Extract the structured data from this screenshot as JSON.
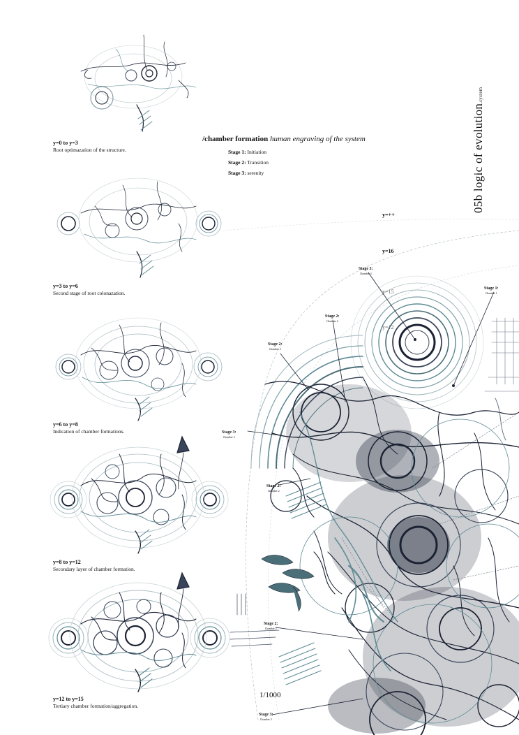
{
  "heading": {
    "bold": "/chamber formation",
    "italic": "human engraving of the system"
  },
  "stages": [
    {
      "label": "Stage 1:",
      "text": "Initiation"
    },
    {
      "label": "Stage 2:",
      "text": "Transition"
    },
    {
      "label": "Stage 3:",
      "text": "serenity"
    }
  ],
  "vertical_title": {
    "main": "05b  logic of evolution",
    "sub": ".system"
  },
  "steps": [
    {
      "label": "y=0 to y=3",
      "text": "Root optimazation of the structure."
    },
    {
      "label": "y=3 to y=6",
      "text": "Second stage of root colonazation."
    },
    {
      "label": "y=6 to y=8",
      "text": "Indication of chamber formations."
    },
    {
      "label": "y=8 to y=12",
      "text": "Secondary layer of chamber formation."
    },
    {
      "label": "y=12 to y=15",
      "text": "Tertiary chamber formation/aggregation."
    }
  ],
  "main_labels": {
    "y_pp": "y=++",
    "y16": "y=16",
    "y15": "y=15",
    "y12": "y=12"
  },
  "annotations": [
    {
      "label": "Stage 3:",
      "sub": "Chamber 3"
    },
    {
      "label": "Stage 2:",
      "sub": "Chamber 2"
    },
    {
      "label": "Stage 1:",
      "sub": "Chamber 1"
    },
    {
      "label": "Stage 2:",
      "sub": "Chamber 2"
    },
    {
      "label": "Stage 3:",
      "sub": "Chamber 3"
    },
    {
      "label": "Stage 2:",
      "sub": "Chamber 2"
    },
    {
      "label": "Stage 2:",
      "sub": "Chamber 2"
    },
    {
      "label": "Stage 3:",
      "sub": "Chamber 3"
    }
  ],
  "scale": "1/1000",
  "colors": {
    "ink": "#1b2233",
    "teal": "#5c8a94",
    "pale": "#9fb6bd"
  }
}
